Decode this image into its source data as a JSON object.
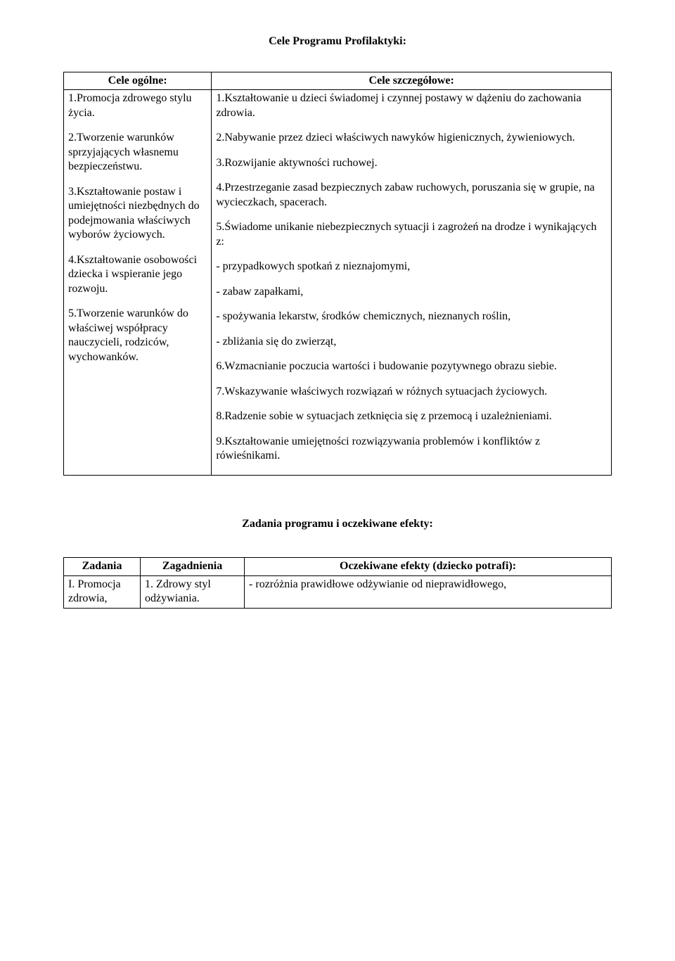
{
  "page_title": "Cele Programu Profilaktyki:",
  "table1": {
    "header_left": "Cele ogólne:",
    "header_right": "Cele szczegółowe:",
    "left": {
      "p1": "1.Promocja zdrowego stylu życia.",
      "p2": "2.Tworzenie warunków sprzyjających własnemu bezpieczeństwu.",
      "p3": "3.Kształtowanie postaw i umiejętności niezbędnych do podejmowania właściwych wyborów życiowych.",
      "p4": "4.Kształtowanie osobowości dziecka i wspieranie jego rozwoju.",
      "p5": "5.Tworzenie warunków do właściwej współpracy nauczycieli, rodziców, wychowanków."
    },
    "right": {
      "p1": "1.Kształtowanie u dzieci świadomej i czynnej postawy w dążeniu do zachowania zdrowia.",
      "p2": "2.Nabywanie przez dzieci właściwych nawyków higienicznych, żywieniowych.",
      "p3": "3.Rozwijanie aktywności ruchowej.",
      "p4": "4.Przestrzeganie zasad bezpiecznych zabaw ruchowych, poruszania się w grupie, na wycieczkach, spacerach.",
      "p5": "5.Świadome unikanie niebezpiecznych sytuacji i zagrożeń na drodze i wynikających z:",
      "b1": "- przypadkowych spotkań z nieznajomymi,",
      "b2": "- zabaw zapałkami,",
      "b3": "- spożywania lekarstw, środków chemicznych, nieznanych roślin,",
      "b4": "- zbliżania się do zwierząt,",
      "p6": "6.Wzmacnianie poczucia wartości i budowanie pozytywnego obrazu siebie.",
      "p7": "7.Wskazywanie właściwych rozwiązań w różnych sytuacjach życiowych.",
      "p8": "8.Radzenie sobie w sytuacjach zetknięcia się z przemocą i uzależnieniami.",
      "p9": "9.Kształtowanie umiejętności rozwiązywania problemów i konfliktów z rówieśnikami."
    }
  },
  "section2_title": "Zadania programu i oczekiwane efekty:",
  "table2": {
    "h1": "Zadania",
    "h2": "Zagadnienia",
    "h3": "Oczekiwane efekty (dziecko potrafi):",
    "r1c1": "I. Promocja zdrowia,",
    "r1c2": "1. Zdrowy styl odżywiania.",
    "r1c3": "- rozróżnia prawidłowe odżywianie od nieprawidłowego,"
  }
}
